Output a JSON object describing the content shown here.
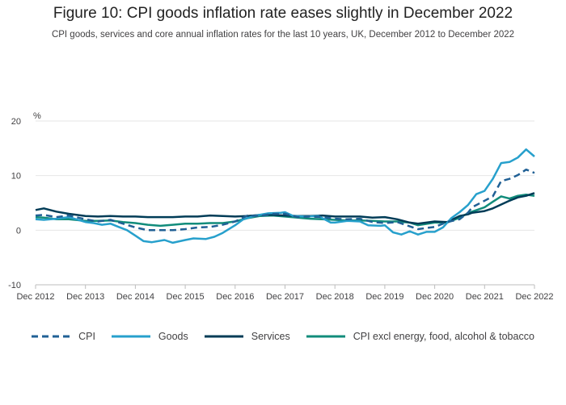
{
  "title": "Figure 10: CPI goods inflation rate eases slightly in December 2022",
  "subtitle": "CPI goods, services and core annual inflation rates for the last 10 years, UK, December 2012 to December 2022",
  "chart_data": {
    "type": "line",
    "title": "Figure 10: CPI goods inflation rate eases slightly in December 2022",
    "subtitle": "CPI goods, services and core annual inflation rates for the last 10 years, UK, December 2012 to December 2022",
    "ylabel": "%",
    "ylim": [
      -10,
      20
    ],
    "yticks": [
      -10,
      0,
      10,
      20
    ],
    "xlabel": "",
    "xticks": [
      "Dec 2012",
      "Dec 2013",
      "Dec 2014",
      "Dec 2015",
      "Dec 2016",
      "Dec 2017",
      "Dec 2018",
      "Dec 2019",
      "Dec 2020",
      "Dec 2021",
      "Dec 2022"
    ],
    "x_start": "Dec 2012",
    "x_end": "Dec 2022",
    "grid": true,
    "legend_position": "bottom",
    "series": [
      {
        "name": "CPI",
        "color": "#206095",
        "style": "dashed",
        "points": [
          [
            2012.917,
            2.7
          ],
          [
            2013.083,
            2.8
          ],
          [
            2013.333,
            2.4
          ],
          [
            2013.583,
            2.7
          ],
          [
            2013.917,
            2.0
          ],
          [
            2014.167,
            1.6
          ],
          [
            2014.417,
            1.9
          ],
          [
            2014.667,
            1.2
          ],
          [
            2014.917,
            0.5
          ],
          [
            2015.167,
            0.0
          ],
          [
            2015.417,
            0.0
          ],
          [
            2015.667,
            0.0
          ],
          [
            2015.917,
            0.2
          ],
          [
            2016.167,
            0.5
          ],
          [
            2016.417,
            0.6
          ],
          [
            2016.667,
            1.0
          ],
          [
            2016.917,
            1.6
          ],
          [
            2017.167,
            2.7
          ],
          [
            2017.417,
            2.6
          ],
          [
            2017.667,
            3.0
          ],
          [
            2017.917,
            3.0
          ],
          [
            2018.167,
            2.4
          ],
          [
            2018.417,
            2.5
          ],
          [
            2018.667,
            2.4
          ],
          [
            2018.917,
            2.1
          ],
          [
            2019.167,
            2.0
          ],
          [
            2019.417,
            2.1
          ],
          [
            2019.667,
            1.5
          ],
          [
            2019.917,
            1.3
          ],
          [
            2020.167,
            1.5
          ],
          [
            2020.417,
            0.7
          ],
          [
            2020.583,
            0.2
          ],
          [
            2020.917,
            0.6
          ],
          [
            2021.167,
            1.5
          ],
          [
            2021.417,
            2.0
          ],
          [
            2021.583,
            3.2
          ],
          [
            2021.667,
            4.2
          ],
          [
            2021.917,
            5.4
          ],
          [
            2022.083,
            6.2
          ],
          [
            2022.25,
            9.0
          ],
          [
            2022.417,
            9.4
          ],
          [
            2022.583,
            10.1
          ],
          [
            2022.75,
            11.1
          ],
          [
            2022.917,
            10.5
          ]
        ]
      },
      {
        "name": "Goods",
        "color": "#27a0cc",
        "style": "solid",
        "points": [
          [
            2012.917,
            2.0
          ],
          [
            2013.083,
            1.9
          ],
          [
            2013.333,
            2.1
          ],
          [
            2013.583,
            2.4
          ],
          [
            2013.917,
            1.5
          ],
          [
            2014.083,
            1.3
          ],
          [
            2014.25,
            1.0
          ],
          [
            2014.417,
            1.2
          ],
          [
            2014.583,
            0.6
          ],
          [
            2014.75,
            0.0
          ],
          [
            2014.917,
            -1.0
          ],
          [
            2015.083,
            -2.0
          ],
          [
            2015.25,
            -2.2
          ],
          [
            2015.5,
            -1.8
          ],
          [
            2015.667,
            -2.3
          ],
          [
            2015.917,
            -1.8
          ],
          [
            2016.083,
            -1.5
          ],
          [
            2016.333,
            -1.6
          ],
          [
            2016.5,
            -1.2
          ],
          [
            2016.667,
            -0.5
          ],
          [
            2016.917,
            0.9
          ],
          [
            2017.083,
            2.0
          ],
          [
            2017.333,
            2.7
          ],
          [
            2017.583,
            3.1
          ],
          [
            2017.833,
            3.2
          ],
          [
            2017.917,
            3.3
          ],
          [
            2018.083,
            2.6
          ],
          [
            2018.333,
            2.5
          ],
          [
            2018.583,
            2.6
          ],
          [
            2018.833,
            1.4
          ],
          [
            2018.917,
            1.4
          ],
          [
            2019.167,
            1.7
          ],
          [
            2019.417,
            1.6
          ],
          [
            2019.583,
            0.9
          ],
          [
            2019.833,
            0.8
          ],
          [
            2019.917,
            0.9
          ],
          [
            2020.083,
            -0.4
          ],
          [
            2020.25,
            -0.8
          ],
          [
            2020.417,
            -0.2
          ],
          [
            2020.583,
            -0.8
          ],
          [
            2020.75,
            -0.3
          ],
          [
            2020.917,
            -0.3
          ],
          [
            2021.083,
            0.5
          ],
          [
            2021.25,
            2.2
          ],
          [
            2021.417,
            3.3
          ],
          [
            2021.583,
            4.6
          ],
          [
            2021.75,
            6.6
          ],
          [
            2021.917,
            7.2
          ],
          [
            2022.083,
            9.4
          ],
          [
            2022.25,
            12.3
          ],
          [
            2022.417,
            12.5
          ],
          [
            2022.583,
            13.3
          ],
          [
            2022.75,
            14.8
          ],
          [
            2022.917,
            13.5
          ]
        ]
      },
      {
        "name": "Services",
        "color": "#003c57",
        "style": "solid",
        "points": [
          [
            2012.917,
            3.7
          ],
          [
            2013.083,
            4.0
          ],
          [
            2013.333,
            3.4
          ],
          [
            2013.583,
            3.0
          ],
          [
            2013.917,
            2.6
          ],
          [
            2014.167,
            2.5
          ],
          [
            2014.417,
            2.6
          ],
          [
            2014.667,
            2.5
          ],
          [
            2014.917,
            2.5
          ],
          [
            2015.167,
            2.4
          ],
          [
            2015.417,
            2.4
          ],
          [
            2015.667,
            2.4
          ],
          [
            2015.917,
            2.5
          ],
          [
            2016.167,
            2.5
          ],
          [
            2016.417,
            2.7
          ],
          [
            2016.667,
            2.6
          ],
          [
            2016.917,
            2.5
          ],
          [
            2017.167,
            2.6
          ],
          [
            2017.417,
            2.8
          ],
          [
            2017.667,
            2.8
          ],
          [
            2017.917,
            2.7
          ],
          [
            2018.167,
            2.6
          ],
          [
            2018.417,
            2.6
          ],
          [
            2018.667,
            2.7
          ],
          [
            2018.917,
            2.5
          ],
          [
            2019.167,
            2.5
          ],
          [
            2019.417,
            2.5
          ],
          [
            2019.667,
            2.3
          ],
          [
            2019.917,
            2.4
          ],
          [
            2020.167,
            2.0
          ],
          [
            2020.417,
            1.4
          ],
          [
            2020.583,
            1.2
          ],
          [
            2020.917,
            1.6
          ],
          [
            2021.167,
            1.5
          ],
          [
            2021.417,
            2.6
          ],
          [
            2021.583,
            2.9
          ],
          [
            2021.667,
            3.2
          ],
          [
            2021.917,
            3.5
          ],
          [
            2022.083,
            4.0
          ],
          [
            2022.25,
            4.7
          ],
          [
            2022.417,
            5.4
          ],
          [
            2022.583,
            6.0
          ],
          [
            2022.75,
            6.3
          ],
          [
            2022.917,
            6.8
          ]
        ]
      },
      {
        "name": "CPI excl energy, food, alcohol & tobacco",
        "color": "#118c7b",
        "style": "solid",
        "points": [
          [
            2012.917,
            2.4
          ],
          [
            2013.083,
            2.3
          ],
          [
            2013.333,
            2.0
          ],
          [
            2013.583,
            2.0
          ],
          [
            2013.917,
            1.7
          ],
          [
            2014.167,
            1.7
          ],
          [
            2014.417,
            1.8
          ],
          [
            2014.667,
            1.5
          ],
          [
            2014.917,
            1.3
          ],
          [
            2015.167,
            1.0
          ],
          [
            2015.417,
            0.8
          ],
          [
            2015.667,
            1.0
          ],
          [
            2015.917,
            1.2
          ],
          [
            2016.167,
            1.2
          ],
          [
            2016.417,
            1.3
          ],
          [
            2016.667,
            1.3
          ],
          [
            2016.917,
            1.6
          ],
          [
            2017.167,
            2.2
          ],
          [
            2017.417,
            2.6
          ],
          [
            2017.667,
            2.7
          ],
          [
            2017.917,
            2.5
          ],
          [
            2018.167,
            2.3
          ],
          [
            2018.417,
            2.1
          ],
          [
            2018.667,
            2.0
          ],
          [
            2018.917,
            1.9
          ],
          [
            2019.167,
            1.8
          ],
          [
            2019.417,
            1.8
          ],
          [
            2019.667,
            1.7
          ],
          [
            2019.917,
            1.6
          ],
          [
            2020.167,
            1.6
          ],
          [
            2020.417,
            1.4
          ],
          [
            2020.583,
            0.9
          ],
          [
            2020.917,
            1.4
          ],
          [
            2021.167,
            1.4
          ],
          [
            2021.417,
            2.3
          ],
          [
            2021.583,
            3.1
          ],
          [
            2021.667,
            3.4
          ],
          [
            2021.917,
            4.2
          ],
          [
            2022.083,
            5.2
          ],
          [
            2022.25,
            6.2
          ],
          [
            2022.417,
            5.8
          ],
          [
            2022.583,
            6.3
          ],
          [
            2022.75,
            6.5
          ],
          [
            2022.917,
            6.3
          ]
        ]
      }
    ]
  }
}
